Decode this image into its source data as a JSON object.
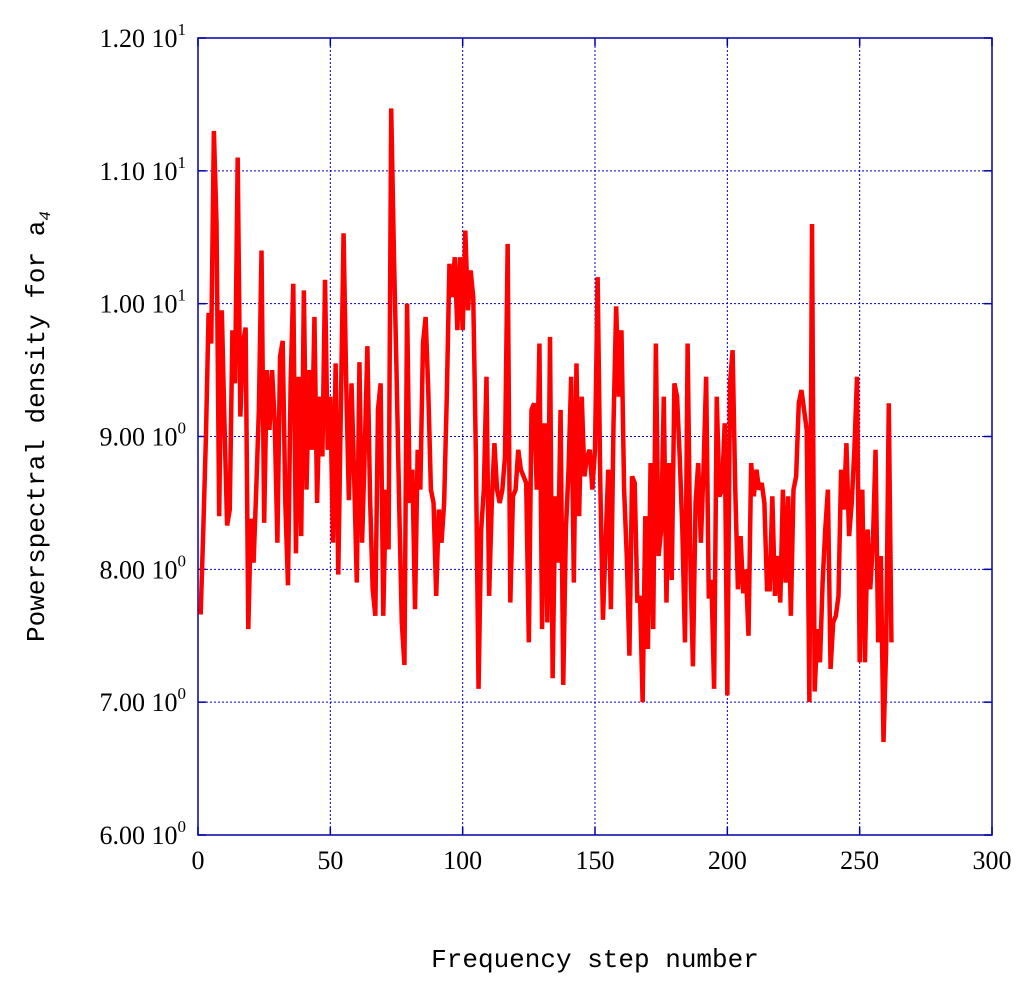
{
  "chart_data": {
    "type": "line",
    "xlabel": "Frequency step number",
    "ylabel": "Powerspectral density for a",
    "ylabel_subscript": "4",
    "xlim": [
      0,
      300
    ],
    "ylim": [
      6.0,
      12.0
    ],
    "grid": true,
    "x_ticks": [
      {
        "value": 0,
        "label": "0"
      },
      {
        "value": 50,
        "label": "50"
      },
      {
        "value": 100,
        "label": "100"
      },
      {
        "value": 150,
        "label": "150"
      },
      {
        "value": 200,
        "label": "200"
      },
      {
        "value": 250,
        "label": "250"
      },
      {
        "value": 300,
        "label": "300"
      }
    ],
    "y_ticks": [
      {
        "value": 6.0,
        "mantissa": "6.00 10",
        "exponent": "0"
      },
      {
        "value": 7.0,
        "mantissa": "7.00 10",
        "exponent": "0"
      },
      {
        "value": 8.0,
        "mantissa": "8.00 10",
        "exponent": "0"
      },
      {
        "value": 9.0,
        "mantissa": "9.00 10",
        "exponent": "0"
      },
      {
        "value": 10.0,
        "mantissa": "1.00 10",
        "exponent": "1"
      },
      {
        "value": 11.0,
        "mantissa": "1.10 10",
        "exponent": "1"
      },
      {
        "value": 12.0,
        "mantissa": "1.20 10",
        "exponent": "1"
      }
    ],
    "colors": {
      "line": "#ff0000",
      "frame": "#0000aa",
      "grid": "#0000cc"
    },
    "series": [
      {
        "x_start": 1,
        "x_step": 1,
        "values": [
          7.66,
          8.3,
          9.0,
          9.93,
          9.7,
          11.3,
          10.6,
          8.4,
          9.95,
          9.1,
          8.33,
          8.45,
          9.8,
          9.4,
          11.1,
          9.15,
          9.7,
          9.82,
          7.55,
          8.38,
          8.05,
          8.6,
          9.2,
          10.4,
          8.35,
          9.5,
          9.05,
          9.5,
          9.1,
          8.2,
          9.6,
          9.72,
          8.5,
          7.88,
          9.4,
          10.15,
          8.12,
          9.45,
          8.25,
          10.1,
          8.6,
          9.5,
          8.9,
          9.9,
          8.5,
          9.3,
          8.85,
          10.18,
          8.9,
          9.3,
          8.2,
          9.55,
          7.96,
          9.25,
          10.53,
          9.4,
          8.52,
          9.4,
          8.7,
          7.9,
          9.56,
          8.2,
          8.9,
          9.68,
          8.55,
          7.85,
          7.65,
          9.2,
          9.4,
          7.65,
          8.6,
          8.15,
          11.47,
          10.4,
          9.5,
          8.5,
          7.6,
          7.28,
          10.0,
          8.5,
          8.75,
          7.7,
          8.9,
          8.6,
          9.7,
          9.9,
          9.35,
          8.6,
          8.5,
          7.8,
          8.45,
          8.2,
          8.5,
          9.3,
          10.3,
          10.05,
          10.35,
          9.8,
          10.35,
          9.8,
          10.55,
          9.95,
          10.25,
          10.05,
          8.85,
          7.1,
          8.3,
          8.6,
          9.45,
          7.8,
          8.5,
          8.95,
          8.6,
          8.5,
          8.6,
          8.85,
          10.45,
          7.75,
          8.55,
          8.6,
          8.9,
          8.75,
          8.7,
          8.65,
          7.45,
          9.2,
          9.25,
          8.6,
          9.7,
          7.55,
          9.1,
          7.6,
          9.75,
          7.18,
          8.55,
          8.05,
          9.2,
          7.13,
          8.3,
          8.75,
          9.45,
          7.9,
          9.55,
          8.4,
          9.3,
          8.7,
          8.85,
          8.9,
          8.6,
          8.9,
          10.2,
          8.65,
          7.62,
          8.2,
          8.75,
          7.7,
          9.1,
          9.98,
          9.3,
          9.8,
          8.6,
          8.1,
          7.35,
          8.7,
          8.65,
          7.75,
          7.8,
          7.0,
          8.4,
          7.4,
          8.8,
          7.55,
          9.7,
          8.1,
          8.3,
          9.3,
          7.75,
          8.8,
          7.92,
          9.4,
          9.3,
          8.85,
          8.3,
          7.45,
          9.7,
          8.1,
          7.27,
          8.5,
          8.8,
          8.2,
          8.75,
          9.45,
          7.78,
          7.92,
          7.1,
          9.3,
          8.55,
          8.6,
          9.1,
          7.05,
          9.4,
          9.65,
          8.6,
          7.85,
          8.25,
          7.82,
          8.0,
          7.5,
          8.8,
          8.55,
          8.75,
          8.6,
          8.65,
          8.5,
          7.85,
          7.85,
          8.55,
          7.8,
          8.1,
          7.75,
          8.6,
          7.9,
          8.55,
          7.65,
          8.6,
          8.7,
          9.25,
          9.35,
          9.2,
          9.05,
          7.0,
          10.6,
          7.08,
          7.55,
          7.3,
          7.9,
          8.3,
          8.6,
          7.25,
          7.6,
          7.65,
          7.8,
          8.75,
          8.45,
          8.95,
          8.25,
          8.5,
          8.9,
          9.45,
          7.3,
          8.6,
          7.3,
          8.3,
          7.85,
          8.2,
          8.9,
          7.45,
          8.1,
          6.7,
          7.4,
          9.25,
          7.45
        ]
      }
    ]
  }
}
